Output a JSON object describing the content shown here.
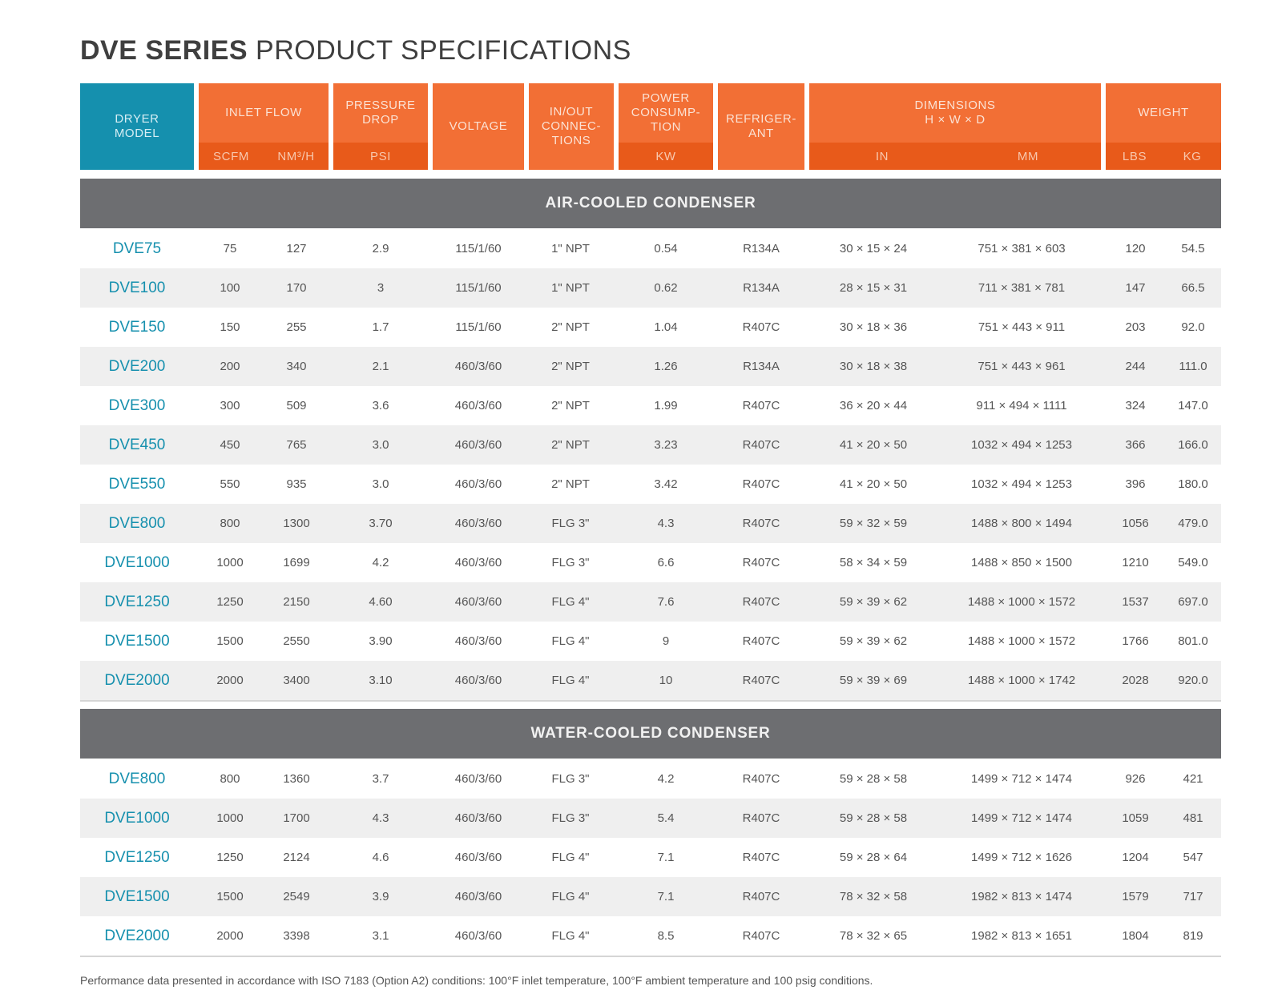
{
  "title": {
    "bold": "DVE SERIES",
    "rest": "PRODUCT SPECIFICATIONS"
  },
  "header": {
    "dryer_model": "DRYER\nMODEL",
    "inlet_flow": "INLET FLOW",
    "scfm": "SCFM",
    "nm3h": "NM³/H",
    "pressure_drop": "PRESSURE\nDROP",
    "psi": "PSI",
    "voltage": "VOLTAGE",
    "connections": "IN/OUT\nCONNEC-\nTIONS",
    "power": "POWER\nCONSUMP-\nTION",
    "kw": "KW",
    "refrigerant": "REFRIGER-\nANT",
    "dimensions": "DIMENSIONS\nH × W × D",
    "in": "IN",
    "mm": "MM",
    "weight": "WEIGHT",
    "lbs": "LBS",
    "kg": "KG"
  },
  "sections": [
    {
      "label": "AIR-COOLED CONDENSER",
      "rows": [
        [
          "DVE75",
          "75",
          "127",
          "2.9",
          "115/1/60",
          "1\" NPT",
          "0.54",
          "R134A",
          "30 × 15 × 24",
          "751 × 381 × 603",
          "120",
          "54.5"
        ],
        [
          "DVE100",
          "100",
          "170",
          "3",
          "115/1/60",
          "1\" NPT",
          "0.62",
          "R134A",
          "28 × 15 × 31",
          "711 × 381 × 781",
          "147",
          "66.5"
        ],
        [
          "DVE150",
          "150",
          "255",
          "1.7",
          "115/1/60",
          "2\" NPT",
          "1.04",
          "R407C",
          "30 × 18 × 36",
          "751 × 443 × 911",
          "203",
          "92.0"
        ],
        [
          "DVE200",
          "200",
          "340",
          "2.1",
          "460/3/60",
          "2\" NPT",
          "1.26",
          "R134A",
          "30 × 18 × 38",
          "751 × 443 × 961",
          "244",
          "111.0"
        ],
        [
          "DVE300",
          "300",
          "509",
          "3.6",
          "460/3/60",
          "2\" NPT",
          "1.99",
          "R407C",
          "36 × 20 × 44",
          "911 × 494 × 1111",
          "324",
          "147.0"
        ],
        [
          "DVE450",
          "450",
          "765",
          "3.0",
          "460/3/60",
          "2\" NPT",
          "3.23",
          "R407C",
          "41 × 20 × 50",
          "1032 × 494 × 1253",
          "366",
          "166.0"
        ],
        [
          "DVE550",
          "550",
          "935",
          "3.0",
          "460/3/60",
          "2\" NPT",
          "3.42",
          "R407C",
          "41 × 20 × 50",
          "1032 × 494 × 1253",
          "396",
          "180.0"
        ],
        [
          "DVE800",
          "800",
          "1300",
          "3.70",
          "460/3/60",
          "FLG 3\"",
          "4.3",
          "R407C",
          "59 × 32 × 59",
          "1488 × 800 × 1494",
          "1056",
          "479.0"
        ],
        [
          "DVE1000",
          "1000",
          "1699",
          "4.2",
          "460/3/60",
          "FLG 3\"",
          "6.6",
          "R407C",
          "58 × 34 × 59",
          "1488 × 850 × 1500",
          "1210",
          "549.0"
        ],
        [
          "DVE1250",
          "1250",
          "2150",
          "4.60",
          "460/3/60",
          "FLG 4\"",
          "7.6",
          "R407C",
          "59 × 39 × 62",
          "1488 × 1000 × 1572",
          "1537",
          "697.0"
        ],
        [
          "DVE1500",
          "1500",
          "2550",
          "3.90",
          "460/3/60",
          "FLG 4\"",
          "9",
          "R407C",
          "59 × 39 × 62",
          "1488 × 1000 × 1572",
          "1766",
          "801.0"
        ],
        [
          "DVE2000",
          "2000",
          "3400",
          "3.10",
          "460/3/60",
          "FLG 4\"",
          "10",
          "R407C",
          "59 × 39 × 69",
          "1488 × 1000 × 1742",
          "2028",
          "920.0"
        ]
      ]
    },
    {
      "label": "WATER-COOLED CONDENSER",
      "rows": [
        [
          "DVE800",
          "800",
          "1360",
          "3.7",
          "460/3/60",
          "FLG 3\"",
          "4.2",
          "R407C",
          "59 × 28 × 58",
          "1499 × 712 × 1474",
          "926",
          "421"
        ],
        [
          "DVE1000",
          "1000",
          "1700",
          "4.3",
          "460/3/60",
          "FLG 3\"",
          "5.4",
          "R407C",
          "59 × 28 × 58",
          "1499 × 712 × 1474",
          "1059",
          "481"
        ],
        [
          "DVE1250",
          "1250",
          "2124",
          "4.6",
          "460/3/60",
          "FLG 4\"",
          "7.1",
          "R407C",
          "59 × 28 × 64",
          "1499 × 712 × 1626",
          "1204",
          "547"
        ],
        [
          "DVE1500",
          "1500",
          "2549",
          "3.9",
          "460/3/60",
          "FLG 4\"",
          "7.1",
          "R407C",
          "78 × 32 × 58",
          "1982 × 813 × 1474",
          "1579",
          "717"
        ],
        [
          "DVE2000",
          "2000",
          "3398",
          "3.1",
          "460/3/60",
          "FLG 4\"",
          "8.5",
          "R407C",
          "78 × 32 × 65",
          "1982 × 813 × 1651",
          "1804",
          "819"
        ]
      ]
    }
  ],
  "footnote": "Performance data presented in accordance with ISO 7183 (Option A2) conditions: 100°F inlet temperature, 100°F ambient temperature and 100 psig conditions."
}
